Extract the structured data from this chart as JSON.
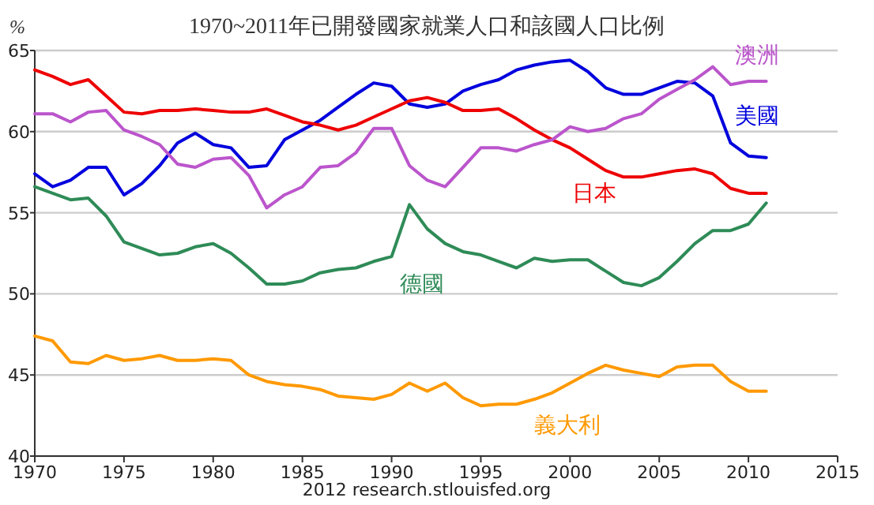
{
  "chart_data": {
    "type": "line",
    "title": "1970~2011年已開發國家就業人口和該國人口比例",
    "ylabel": "%",
    "x": [
      1970,
      1971,
      1972,
      1973,
      1974,
      1975,
      1976,
      1977,
      1978,
      1979,
      1980,
      1981,
      1982,
      1983,
      1984,
      1985,
      1986,
      1987,
      1988,
      1989,
      1990,
      1991,
      1992,
      1993,
      1994,
      1995,
      1996,
      1997,
      1998,
      1999,
      2000,
      2001,
      2002,
      2003,
      2004,
      2005,
      2006,
      2007,
      2008,
      2009,
      2010,
      2011
    ],
    "series": [
      {
        "name": "美國",
        "color": "#0000dd",
        "values": [
          57.4,
          56.6,
          57.0,
          57.8,
          57.8,
          56.1,
          56.8,
          57.9,
          59.3,
          59.9,
          59.2,
          59.0,
          57.8,
          57.9,
          59.5,
          60.1,
          60.7,
          61.5,
          62.3,
          63.0,
          62.8,
          61.7,
          61.5,
          61.7,
          62.5,
          62.9,
          63.2,
          63.8,
          64.1,
          64.3,
          64.4,
          63.7,
          62.7,
          62.3,
          62.3,
          62.7,
          63.1,
          63.0,
          62.2,
          59.3,
          58.5,
          58.4
        ]
      },
      {
        "name": "日本",
        "color": "#ee0000",
        "values": [
          63.8,
          63.4,
          62.9,
          63.2,
          62.2,
          61.2,
          61.1,
          61.3,
          61.3,
          61.4,
          61.3,
          61.2,
          61.2,
          61.4,
          61.0,
          60.6,
          60.4,
          60.1,
          60.4,
          60.9,
          61.4,
          61.9,
          62.1,
          61.8,
          61.3,
          61.3,
          61.4,
          60.8,
          60.1,
          59.5,
          59.0,
          58.3,
          57.6,
          57.2,
          57.2,
          57.4,
          57.6,
          57.7,
          57.4,
          56.5,
          56.2,
          56.2
        ]
      },
      {
        "name": "澳洲",
        "color": "#bb55cc",
        "values": [
          61.1,
          61.1,
          60.6,
          61.2,
          61.3,
          60.1,
          59.7,
          59.2,
          58.0,
          57.8,
          58.3,
          58.4,
          57.3,
          55.3,
          56.1,
          56.6,
          57.8,
          57.9,
          58.7,
          60.2,
          60.2,
          57.9,
          57.0,
          56.6,
          57.8,
          59.0,
          59.0,
          58.8,
          59.2,
          59.5,
          60.3,
          60.0,
          60.2,
          60.8,
          61.1,
          62.0,
          62.6,
          63.2,
          64.0,
          62.9,
          63.1,
          63.1
        ]
      },
      {
        "name": "德國",
        "color": "#2e8b57",
        "values": [
          56.6,
          56.2,
          55.8,
          55.9,
          54.8,
          53.2,
          52.8,
          52.4,
          52.5,
          52.9,
          53.1,
          52.5,
          51.6,
          50.6,
          50.6,
          50.8,
          51.3,
          51.5,
          51.6,
          52.0,
          52.3,
          55.5,
          54.0,
          53.1,
          52.6,
          52.4,
          52.0,
          51.6,
          52.2,
          52.0,
          52.1,
          52.1,
          51.4,
          50.7,
          50.5,
          51.0,
          52.0,
          53.1,
          53.9,
          53.9,
          54.3,
          55.6
        ]
      },
      {
        "name": "義大利",
        "color": "#ff9900",
        "values": [
          47.4,
          47.1,
          45.8,
          45.7,
          46.2,
          45.9,
          46.0,
          46.2,
          45.9,
          45.9,
          46.0,
          45.9,
          45.0,
          44.6,
          44.4,
          44.3,
          44.1,
          43.7,
          43.6,
          43.5,
          43.8,
          44.5,
          44.0,
          44.5,
          43.6,
          43.1,
          43.2,
          43.2,
          43.5,
          43.9,
          44.5,
          45.1,
          45.6,
          45.3,
          45.1,
          44.9,
          45.5,
          45.6,
          45.6,
          44.6,
          44.0,
          44.0
        ]
      }
    ],
    "xlim": [
      1970,
      2015
    ],
    "xticks": [
      1970,
      1975,
      1980,
      1985,
      1990,
      1995,
      2000,
      2005,
      2010,
      2015
    ],
    "ylim": [
      40,
      65
    ],
    "yticks": [
      40,
      45,
      50,
      55,
      60,
      65
    ],
    "grid": "y",
    "annotations": [
      "2012 research.stlouisfed.org"
    ]
  }
}
